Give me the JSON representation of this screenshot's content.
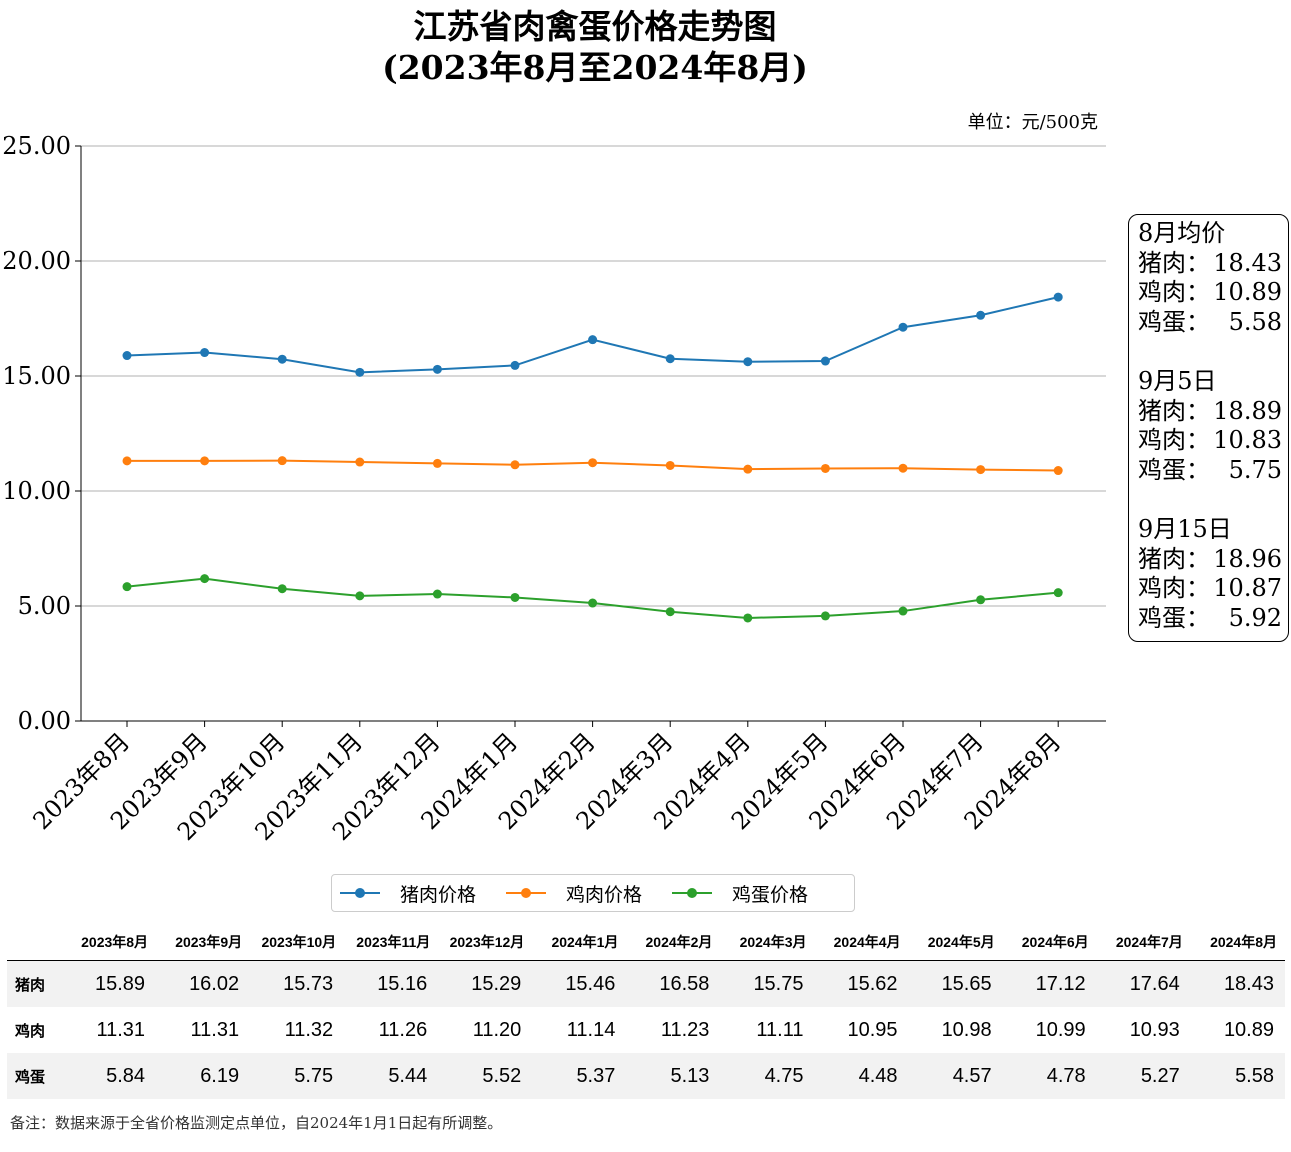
{
  "title_line1": "江苏省肉禽蛋价格走势图",
  "title_line2": "(2023年8月至2024年8月)",
  "unit": "单位：元/500克",
  "chart_data": {
    "type": "line",
    "categories": [
      "2023年8月",
      "2023年9月",
      "2023年10月",
      "2023年11月",
      "2023年12月",
      "2024年1月",
      "2024年2月",
      "2024年3月",
      "2024年4月",
      "2024年5月",
      "2024年6月",
      "2024年7月",
      "2024年8月"
    ],
    "series": [
      {
        "name": "猪肉价格",
        "color": "#1f77b4",
        "values": [
          15.89,
          16.02,
          15.73,
          15.16,
          15.29,
          15.46,
          16.58,
          15.75,
          15.62,
          15.65,
          17.12,
          17.64,
          18.43
        ]
      },
      {
        "name": "鸡肉价格",
        "color": "#ff7f0e",
        "values": [
          11.31,
          11.31,
          11.32,
          11.26,
          11.2,
          11.14,
          11.23,
          11.11,
          10.95,
          10.98,
          10.99,
          10.93,
          10.89
        ]
      },
      {
        "name": "鸡蛋价格",
        "color": "#2ca02c",
        "values": [
          5.84,
          6.19,
          5.75,
          5.44,
          5.52,
          5.37,
          5.13,
          4.75,
          4.48,
          4.57,
          4.78,
          5.27,
          5.58
        ]
      }
    ],
    "yticks": [
      "0.00",
      "5.00",
      "10.00",
      "15.00",
      "20.00",
      "25.00"
    ],
    "ylim": [
      0,
      25
    ],
    "grid": "horizontal",
    "legend_position": "bottom-center"
  },
  "infobox": [
    {
      "heading": "8月均价",
      "rows": [
        {
          "label": "猪肉：",
          "value": "18.43"
        },
        {
          "label": "鸡肉：",
          "value": "10.89"
        },
        {
          "label": "鸡蛋：",
          "value": "5.58"
        }
      ]
    },
    {
      "heading": "9月5日",
      "rows": [
        {
          "label": "猪肉：",
          "value": "18.89"
        },
        {
          "label": "鸡肉：",
          "value": "10.83"
        },
        {
          "label": "鸡蛋：",
          "value": "5.75"
        }
      ]
    },
    {
      "heading": "9月15日",
      "rows": [
        {
          "label": "猪肉：",
          "value": "18.96"
        },
        {
          "label": "鸡肉：",
          "value": "10.87"
        },
        {
          "label": "鸡蛋：",
          "value": "5.92"
        }
      ]
    }
  ],
  "table": {
    "columns": [
      "2023年8月",
      "2023年9月",
      "2023年10月",
      "2023年11月",
      "2023年12月",
      "2024年1月",
      "2024年2月",
      "2024年3月",
      "2024年4月",
      "2024年5月",
      "2024年6月",
      "2024年7月",
      "2024年8月"
    ],
    "rows": [
      {
        "label": "猪肉",
        "values": [
          "15.89",
          "16.02",
          "15.73",
          "15.16",
          "15.29",
          "15.46",
          "16.58",
          "15.75",
          "15.62",
          "15.65",
          "17.12",
          "17.64",
          "18.43"
        ]
      },
      {
        "label": "鸡肉",
        "values": [
          "11.31",
          "11.31",
          "11.32",
          "11.26",
          "11.20",
          "11.14",
          "11.23",
          "11.11",
          "10.95",
          "10.98",
          "10.99",
          "10.93",
          "10.89"
        ]
      },
      {
        "label": "鸡蛋",
        "values": [
          "5.84",
          "6.19",
          "5.75",
          "5.44",
          "5.52",
          "5.37",
          "5.13",
          "4.75",
          "4.48",
          "4.57",
          "4.78",
          "5.27",
          "5.58"
        ]
      }
    ]
  },
  "note": "备注：数据来源于全省价格监测定点单位，自2024年1月1日起有所调整。"
}
